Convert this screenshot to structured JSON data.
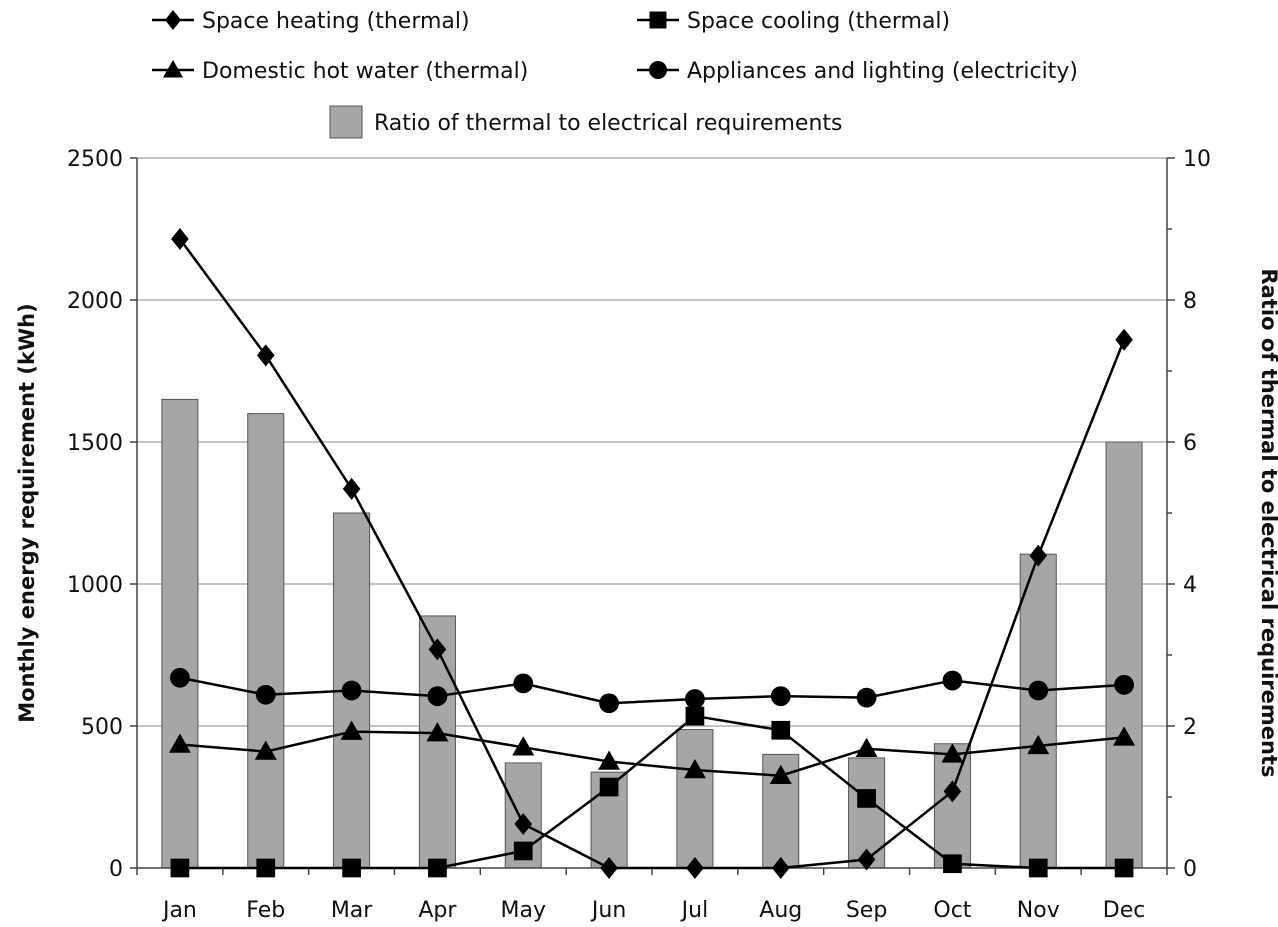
{
  "chart_data": {
    "type": "bar",
    "categories": [
      "Jan",
      "Feb",
      "Mar",
      "Apr",
      "May",
      "Jun",
      "Jul",
      "Aug",
      "Sep",
      "Oct",
      "Nov",
      "Dec"
    ],
    "ylabel": "Monthly energy requirement (kWh)",
    "y2label": "Ratio of thermal to electrical requirements",
    "ylim": [
      0,
      2500
    ],
    "y2lim": [
      0,
      10
    ],
    "yticks": [
      "0",
      "500",
      "1000",
      "1500",
      "2000",
      "2500"
    ],
    "y2ticks": [
      "0",
      "2",
      "4",
      "6",
      "8",
      "10"
    ],
    "grid": true,
    "legend_position": "top",
    "bar_series": {
      "name": "Ratio of thermal to electrical requirements",
      "axis": "right",
      "color": "#a6a6a6",
      "values": [
        6.6,
        6.4,
        5.0,
        3.55,
        1.48,
        1.35,
        1.95,
        1.6,
        1.55,
        1.75,
        4.42,
        6.0
      ]
    },
    "series": [
      {
        "name": "Space heating (thermal)",
        "marker": "diamond",
        "axis": "left",
        "values": [
          2215,
          1805,
          1335,
          770,
          155,
          0,
          0,
          0,
          30,
          270,
          1100,
          1860
        ]
      },
      {
        "name": "Space cooling (thermal)",
        "marker": "square",
        "axis": "left",
        "values": [
          0,
          0,
          0,
          0,
          60,
          285,
          535,
          485,
          245,
          15,
          0,
          0
        ]
      },
      {
        "name": "Domestic hot water (thermal)",
        "marker": "triangle",
        "axis": "left",
        "values": [
          435,
          410,
          480,
          475,
          425,
          375,
          345,
          325,
          420,
          400,
          430,
          460
        ]
      },
      {
        "name": "Appliances and lighting (electricity)",
        "marker": "circle",
        "axis": "left",
        "values": [
          670,
          610,
          625,
          605,
          650,
          580,
          595,
          605,
          600,
          660,
          625,
          645
        ]
      }
    ]
  }
}
